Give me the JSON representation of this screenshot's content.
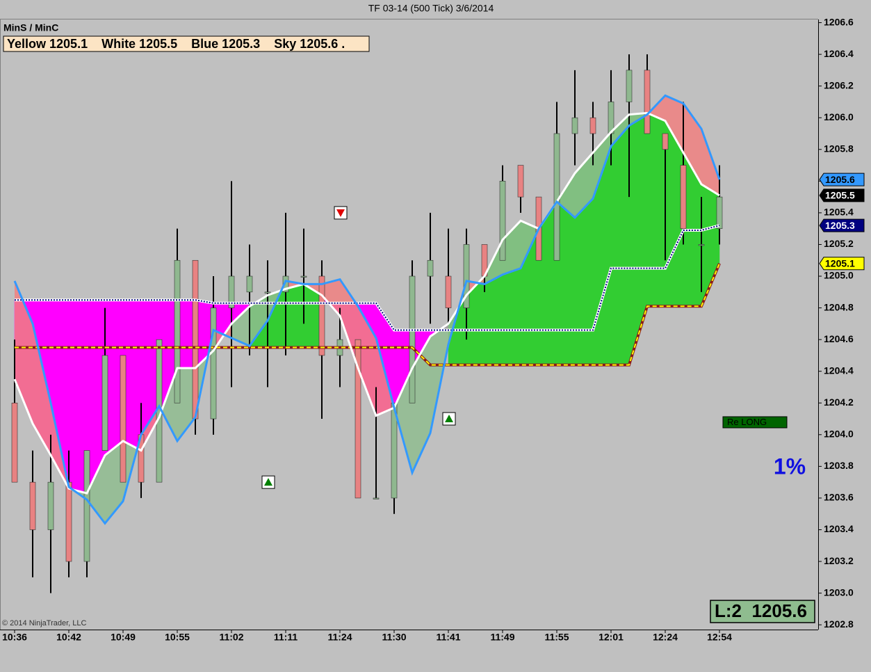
{
  "chart_data": {
    "type": "candlestick",
    "title": "TF 03-14 (500 Tick)  3/6/2014",
    "indicator_name": "MinS / MinC",
    "legend_text": "Yellow 1205.1    White 1205.5    Blue 1205.3    Sky 1205.6 .",
    "copyright": "© 2014 NinjaTrader, LLC",
    "annotation_signal": "Re LONG",
    "annotation_percent": "1%",
    "annotation_position": "L:2  1205.6",
    "categories": [
      "10:36",
      null,
      null,
      "10:42",
      null,
      null,
      "10:49",
      null,
      null,
      "10:55",
      null,
      null,
      "11:02",
      null,
      null,
      "11:11",
      null,
      null,
      "11:24",
      null,
      null,
      "11:30",
      null,
      null,
      "11:41",
      null,
      null,
      "11:49",
      null,
      null,
      "11:55",
      null,
      null,
      "12:01",
      null,
      null,
      "12:24",
      null,
      null,
      "12:54"
    ],
    "open": [
      1204.2,
      1203.7,
      1203.4,
      1203.7,
      1203.2,
      1203.9,
      1204.5,
      1204.0,
      1203.7,
      1204.2,
      1205.1,
      1204.1,
      1204.8,
      1204.9,
      1204.9,
      1204.9,
      1205.0,
      1205.0,
      1204.5,
      1204.6,
      1203.6,
      1203.6,
      1204.2,
      1205.0,
      1205.0,
      1204.8,
      1205.2,
      1205.1,
      1205.7,
      1205.5,
      1205.1,
      1205.9,
      1206.0,
      1205.9,
      1206.1,
      1206.3,
      1205.9,
      1205.7,
      1205.2,
      1205.3
    ],
    "high": [
      1204.6,
      1203.9,
      1204.0,
      1203.9,
      1203.9,
      1204.8,
      1204.5,
      1204.2,
      1204.6,
      1205.3,
      1205.1,
      1205.0,
      1205.6,
      1205.2,
      1205.1,
      1205.4,
      1205.3,
      1205.1,
      1204.8,
      1204.6,
      1204.3,
      1204.2,
      1205.1,
      1205.4,
      1205.3,
      1205.3,
      1205.2,
      1205.7,
      1205.7,
      1205.5,
      1206.1,
      1206.3,
      1206.1,
      1206.3,
      1206.4,
      1206.4,
      1205.9,
      1206.1,
      1205.5,
      1205.7
    ],
    "low": [
      1203.7,
      1203.1,
      1203.0,
      1203.1,
      1203.1,
      1203.9,
      1203.7,
      1203.6,
      1203.7,
      1204.2,
      1204.0,
      1204.0,
      1204.3,
      1204.5,
      1204.3,
      1204.5,
      1204.7,
      1204.1,
      1204.3,
      1203.6,
      1203.6,
      1203.5,
      1204.2,
      1204.7,
      1204.7,
      1204.6,
      1204.9,
      1205.1,
      1205.4,
      1205.1,
      1205.1,
      1205.7,
      1205.7,
      1205.7,
      1205.5,
      1205.9,
      1205.1,
      1205.2,
      1204.9,
      1205.2
    ],
    "close": [
      1203.7,
      1203.4,
      1203.7,
      1203.2,
      1203.9,
      1204.5,
      1203.7,
      1203.7,
      1204.6,
      1205.1,
      1204.1,
      1204.8,
      1205.0,
      1205.0,
      1204.9,
      1205.0,
      1205.0,
      1204.5,
      1204.6,
      1203.6,
      1203.6,
      1204.2,
      1205.0,
      1205.1,
      1204.8,
      1205.2,
      1205.0,
      1205.6,
      1205.5,
      1205.1,
      1205.9,
      1206.0,
      1205.9,
      1206.1,
      1206.3,
      1205.9,
      1205.8,
      1205.3,
      1205.2,
      1205.5
    ],
    "up_color": "#8fb88f",
    "down_color": "#e88282",
    "series": [
      {
        "name": "Yellow",
        "color": "#ffff00",
        "style": "dashed",
        "last_label": "1205.1",
        "values": [
          1204.55,
          1204.55,
          1204.55,
          1204.55,
          1204.55,
          1204.55,
          1204.55,
          1204.55,
          1204.55,
          1204.55,
          1204.55,
          1204.55,
          1204.55,
          1204.55,
          1204.55,
          1204.55,
          1204.55,
          1204.55,
          1204.55,
          1204.55,
          1204.55,
          1204.55,
          1204.55,
          1204.44,
          1204.44,
          1204.44,
          1204.44,
          1204.44,
          1204.44,
          1204.44,
          1204.44,
          1204.44,
          1204.44,
          1204.44,
          1204.44,
          1204.81,
          1204.81,
          1204.81,
          1204.81,
          1205.08
        ]
      },
      {
        "name": "White",
        "color": "#ffffff",
        "style": "solid",
        "last_label": "1205.5",
        "values": [
          1204.35,
          1204.07,
          1203.87,
          1203.66,
          1203.63,
          1203.87,
          1203.96,
          1203.9,
          1204.11,
          1204.42,
          1204.42,
          1204.53,
          1204.7,
          1204.81,
          1204.88,
          1204.92,
          1204.95,
          1204.88,
          1204.75,
          1204.42,
          1204.12,
          1204.17,
          1204.42,
          1204.62,
          1204.7,
          1204.88,
          1205.0,
          1205.23,
          1205.35,
          1205.3,
          1205.47,
          1205.65,
          1205.78,
          1205.91,
          1206.02,
          1206.03,
          1205.98,
          1205.78,
          1205.58,
          1205.51
        ]
      },
      {
        "name": "Blue",
        "color": "#000080",
        "style": "dotted",
        "last_label": "1205.3",
        "values": [
          1204.85,
          1204.85,
          1204.85,
          1204.85,
          1204.85,
          1204.85,
          1204.85,
          1204.85,
          1204.85,
          1204.85,
          1204.85,
          1204.83,
          1204.83,
          1204.83,
          1204.83,
          1204.83,
          1204.83,
          1204.83,
          1204.83,
          1204.83,
          1204.83,
          1204.66,
          1204.66,
          1204.66,
          1204.66,
          1204.66,
          1204.66,
          1204.66,
          1204.66,
          1204.66,
          1204.66,
          1204.66,
          1204.66,
          1205.05,
          1205.05,
          1205.05,
          1205.05,
          1205.29,
          1205.29,
          1205.32
        ]
      },
      {
        "name": "Sky",
        "color": "#3399ff",
        "style": "solid",
        "last_label": "1205.6",
        "values": [
          1204.97,
          1204.7,
          1204.2,
          1203.67,
          1203.59,
          1203.44,
          1203.58,
          1204.0,
          1204.18,
          1203.96,
          1204.11,
          1204.66,
          1204.61,
          1204.56,
          1204.72,
          1204.97,
          1204.95,
          1204.95,
          1204.98,
          1204.81,
          1204.61,
          1204.17,
          1203.76,
          1204.01,
          1204.57,
          1204.97,
          1204.95,
          1205.01,
          1205.05,
          1205.3,
          1205.47,
          1205.37,
          1205.49,
          1205.82,
          1205.95,
          1206.02,
          1206.14,
          1206.09,
          1205.93,
          1205.61
        ]
      }
    ],
    "signals": [
      {
        "index": 14,
        "value": 1203.7,
        "direction": "up",
        "color": "#008000"
      },
      {
        "index": 18,
        "value": 1205.4,
        "direction": "down",
        "color": "#e00000"
      },
      {
        "index": 24,
        "value": 1204.1,
        "direction": "up",
        "color": "#008000"
      }
    ],
    "ylim": [
      1202.77,
      1206.62
    ],
    "yticks": [
      1202.8,
      {
        "value": 1203,
        "label": "1203.0"
      },
      1203.2,
      1203.4,
      1203.6,
      1203.8,
      {
        "value": 1204,
        "label": "1204.0"
      },
      1204.2,
      1204.4,
      1204.6,
      1204.8,
      {
        "value": 1205,
        "label": "1205.0"
      },
      1205.2,
      1205.4,
      1205.6,
      1205.8,
      {
        "value": 1206,
        "label": "1206.0"
      },
      1206.2,
      1206.4,
      1206.6
    ]
  }
}
